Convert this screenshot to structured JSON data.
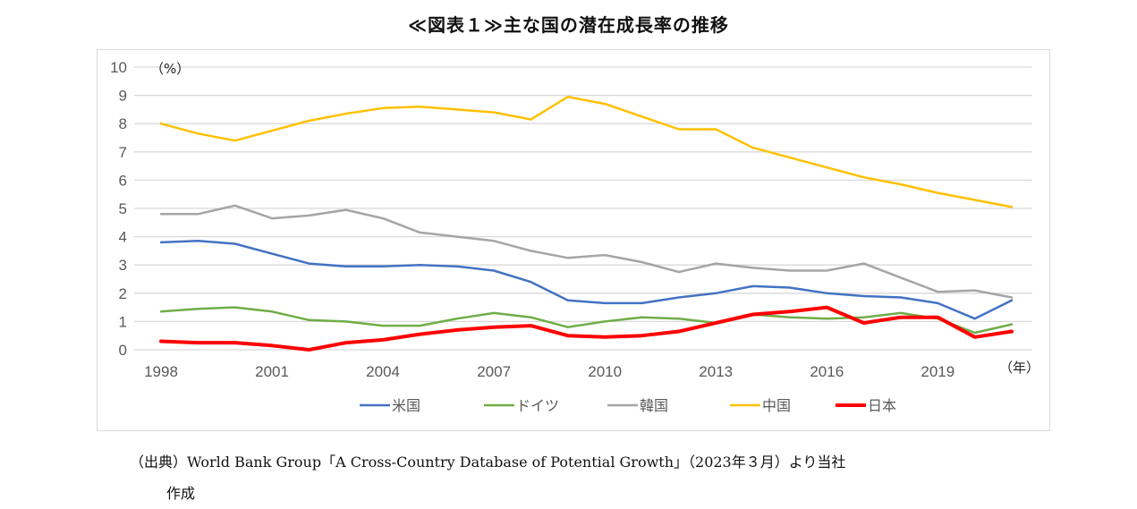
{
  "title": "≪図表１≫主な国の潜在成長率の推移",
  "source_line1": "（出典）World Bank Group「A Cross-Country Database of Potential Growth」（2023年３月）より当社",
  "source_line2": "作成",
  "chart_data": {
    "type": "line",
    "title": "≪図表１≫主な国の潜在成長率の推移",
    "ylabel": "（%）",
    "xlabel": "（年）",
    "ylim": [
      0,
      10
    ],
    "yticks": [
      "0",
      "1",
      "2",
      "3",
      "4",
      "5",
      "6",
      "7",
      "8",
      "9",
      "10"
    ],
    "x": [
      1998,
      1999,
      2000,
      2001,
      2002,
      2003,
      2004,
      2005,
      2006,
      2007,
      2008,
      2009,
      2010,
      2011,
      2012,
      2013,
      2014,
      2015,
      2016,
      2017,
      2018,
      2019,
      2020,
      2021
    ],
    "xtick_labels": [
      "1998",
      "2001",
      "2004",
      "2007",
      "2010",
      "2013",
      "2016",
      "2019"
    ],
    "grid": true,
    "legend_position": "bottom",
    "series": [
      {
        "name": "米国",
        "color": "#4472C4",
        "width": 2.5,
        "values": [
          3.8,
          3.85,
          3.75,
          3.4,
          3.05,
          2.95,
          2.95,
          3.0,
          2.95,
          2.8,
          2.4,
          1.75,
          1.65,
          1.65,
          1.85,
          2.0,
          2.25,
          2.2,
          2.0,
          1.9,
          1.85,
          1.65,
          1.1,
          1.75
        ]
      },
      {
        "name": "ドイツ",
        "color": "#70AD47",
        "width": 2.5,
        "values": [
          1.35,
          1.45,
          1.5,
          1.35,
          1.05,
          1.0,
          0.85,
          0.85,
          1.1,
          1.3,
          1.15,
          0.8,
          1.0,
          1.15,
          1.1,
          0.95,
          1.25,
          1.15,
          1.1,
          1.15,
          1.3,
          1.1,
          0.6,
          0.9
        ]
      },
      {
        "name": "韓国",
        "color": "#A5A5A5",
        "width": 2.5,
        "values": [
          4.8,
          4.8,
          5.1,
          4.65,
          4.75,
          4.95,
          4.65,
          4.15,
          4.0,
          3.85,
          3.5,
          3.25,
          3.35,
          3.1,
          2.75,
          3.05,
          2.9,
          2.8,
          2.8,
          3.05,
          2.55,
          2.05,
          2.1,
          1.85
        ]
      },
      {
        "name": "中国",
        "color": "#FFC000",
        "width": 2.5,
        "values": [
          8.0,
          7.65,
          7.4,
          7.75,
          8.1,
          8.35,
          8.55,
          8.6,
          8.5,
          8.4,
          8.15,
          8.95,
          8.7,
          8.25,
          7.8,
          7.8,
          7.15,
          6.8,
          6.45,
          6.1,
          5.85,
          5.55,
          5.3,
          5.05
        ]
      },
      {
        "name": "日本",
        "color": "#FF0000",
        "width": 4,
        "values": [
          0.3,
          0.25,
          0.25,
          0.15,
          0.0,
          0.25,
          0.35,
          0.55,
          0.7,
          0.8,
          0.85,
          0.5,
          0.45,
          0.5,
          0.65,
          0.95,
          1.25,
          1.35,
          1.5,
          0.95,
          1.15,
          1.15,
          0.45,
          0.65
        ]
      }
    ]
  }
}
